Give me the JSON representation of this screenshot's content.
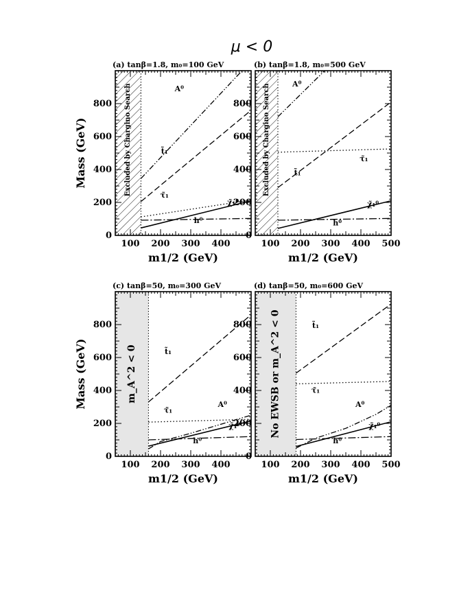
{
  "figure": {
    "title": "μ < 0"
  },
  "colors": {
    "ink": "#000000",
    "shade": "#e6e6e6"
  },
  "chart_data": [
    {
      "type": "line",
      "title": "(a) tanβ=1.8, m₀=100 GeV",
      "xlabel": "m1/2 (GeV)",
      "ylabel": "Mass (GeV)",
      "xlim": [
        50,
        500
      ],
      "ylim": [
        0,
        1000
      ],
      "xticks": [
        100,
        200,
        300,
        400
      ],
      "yticks": [
        0,
        200,
        400,
        600,
        800
      ],
      "excluded": {
        "x_max": 135,
        "label": "Excluded by Chargino Search",
        "style": "hatched"
      },
      "series": [
        {
          "name": "h⁰",
          "style": "dash-dot",
          "x": [
            135,
            500
          ],
          "y": [
            92,
            103
          ]
        },
        {
          "name": "χ̃₁⁰",
          "style": "solid",
          "x": [
            135,
            500
          ],
          "y": [
            45,
            210
          ]
        },
        {
          "name": "τ̃₁",
          "style": "dotted",
          "x": [
            135,
            500
          ],
          "y": [
            112,
            215
          ]
        },
        {
          "name": "t̃₁",
          "style": "dashed",
          "x": [
            135,
            500
          ],
          "y": [
            205,
            760
          ]
        },
        {
          "name": "A⁰",
          "style": "dash-dot-dot",
          "x": [
            135,
            470
          ],
          "y": [
            345,
            1000
          ]
        }
      ],
      "labels": [
        {
          "text": "A⁰",
          "x": 262,
          "y": 875
        },
        {
          "text": "t̃₁",
          "x": 213,
          "y": 495
        },
        {
          "text": "τ̃₁",
          "x": 213,
          "y": 230
        },
        {
          "text": "χ̃₁⁰",
          "x": 440,
          "y": 185
        },
        {
          "text": "h⁰",
          "x": 325,
          "y": 75
        }
      ]
    },
    {
      "type": "line",
      "title": "(b) tanβ=1.8, m₀=500 GeV",
      "xlabel": "m1/2 (GeV)",
      "ylabel": "",
      "xlim": [
        50,
        500
      ],
      "ylim": [
        0,
        1000
      ],
      "xticks": [
        100,
        200,
        300,
        400,
        500
      ],
      "yticks": [
        0,
        200,
        400,
        600,
        800
      ],
      "excluded": {
        "x_max": 125,
        "label": "Excluded by Chargino Search",
        "style": "hatched"
      },
      "series": [
        {
          "name": "h⁰",
          "style": "dash-dot",
          "x": [
            125,
            500
          ],
          "y": [
            92,
            103
          ]
        },
        {
          "name": "χ̃₁⁰",
          "style": "solid",
          "x": [
            125,
            500
          ],
          "y": [
            42,
            210
          ]
        },
        {
          "name": "τ̃₁",
          "style": "dotted",
          "x": [
            125,
            500
          ],
          "y": [
            505,
            525
          ]
        },
        {
          "name": "t̃₁",
          "style": "dashed",
          "x": [
            125,
            500
          ],
          "y": [
            290,
            810
          ]
        },
        {
          "name": "A⁰",
          "style": "dash-dot-dot",
          "x": [
            125,
            280
          ],
          "y": [
            720,
            1000
          ]
        }
      ],
      "labels": [
        {
          "text": "A⁰",
          "x": 188,
          "y": 905
        },
        {
          "text": "t̃₁",
          "x": 190,
          "y": 365
        },
        {
          "text": "τ̃₁",
          "x": 410,
          "y": 450
        },
        {
          "text": "χ̃₁⁰",
          "x": 440,
          "y": 175
        },
        {
          "text": "h⁰",
          "x": 322,
          "y": 60
        }
      ]
    },
    {
      "type": "line",
      "title": "(c) tanβ=50, m₀=300 GeV",
      "xlabel": "m1/2 (GeV)",
      "ylabel": "Mass (GeV)",
      "xlim": [
        50,
        500
      ],
      "ylim": [
        0,
        1000
      ],
      "xticks": [
        100,
        200,
        300,
        400
      ],
      "yticks": [
        0,
        200,
        400,
        600,
        800
      ],
      "excluded": {
        "x_max": 160,
        "label": "m_A^2 < 0",
        "style": "shaded"
      },
      "series": [
        {
          "name": "h⁰",
          "style": "dash-dot",
          "x": [
            160,
            500
          ],
          "y": [
            100,
            120
          ]
        },
        {
          "name": "χ̃₁⁰",
          "style": "solid",
          "x": [
            160,
            500
          ],
          "y": [
            62,
            215
          ]
        },
        {
          "name": "τ̃₁",
          "style": "dotted",
          "x": [
            160,
            500
          ],
          "y": [
            208,
            225
          ]
        },
        {
          "name": "t̃₁",
          "style": "dashed",
          "x": [
            160,
            500
          ],
          "y": [
            330,
            860
          ]
        },
        {
          "name": "A⁰",
          "style": "dash-dot-dot",
          "x": [
            160,
            200,
            300,
            400,
            500
          ],
          "y": [
            45,
            90,
            140,
            195,
            250
          ]
        }
      ],
      "labels": [
        {
          "text": "t̃₁",
          "x": 225,
          "y": 620
        },
        {
          "text": "τ̃₁",
          "x": 225,
          "y": 265
        },
        {
          "text": "A⁰",
          "x": 405,
          "y": 300
        },
        {
          "text": "χ̃₁⁰",
          "x": 445,
          "y": 170
        },
        {
          "text": "h⁰",
          "x": 322,
          "y": 80
        }
      ]
    },
    {
      "type": "line",
      "title": "(d) tanβ=50, m₀=600 GeV",
      "xlabel": "m1/2 (GeV)",
      "ylabel": "",
      "xlim": [
        50,
        500
      ],
      "ylim": [
        0,
        1000
      ],
      "xticks": [
        100,
        200,
        300,
        400,
        500
      ],
      "yticks": [
        0,
        200,
        400,
        600,
        800
      ],
      "excluded": {
        "x_max": 185,
        "label": "No EWSB or m_A^2 < 0",
        "style": "shaded"
      },
      "series": [
        {
          "name": "h⁰",
          "style": "dash-dot",
          "x": [
            185,
            500
          ],
          "y": [
            102,
            120
          ]
        },
        {
          "name": "χ̃₁⁰",
          "style": "solid",
          "x": [
            185,
            500
          ],
          "y": [
            60,
            210
          ]
        },
        {
          "name": "τ̃₁",
          "style": "dotted",
          "x": [
            185,
            500
          ],
          "y": [
            440,
            455
          ]
        },
        {
          "name": "t̃₁",
          "style": "dashed",
          "x": [
            185,
            500
          ],
          "y": [
            505,
            925
          ]
        },
        {
          "name": "A⁰",
          "style": "dash-dot-dot",
          "x": [
            185,
            250,
            350,
            450,
            500
          ],
          "y": [
            50,
            110,
            170,
            255,
            310
          ]
        }
      ],
      "labels": [
        {
          "text": "t̃₁",
          "x": 250,
          "y": 780
        },
        {
          "text": "τ̃₁",
          "x": 250,
          "y": 385
        },
        {
          "text": "A⁰",
          "x": 397,
          "y": 300
        },
        {
          "text": "χ̃₁⁰",
          "x": 445,
          "y": 170
        },
        {
          "text": "h⁰",
          "x": 322,
          "y": 80
        }
      ]
    }
  ]
}
